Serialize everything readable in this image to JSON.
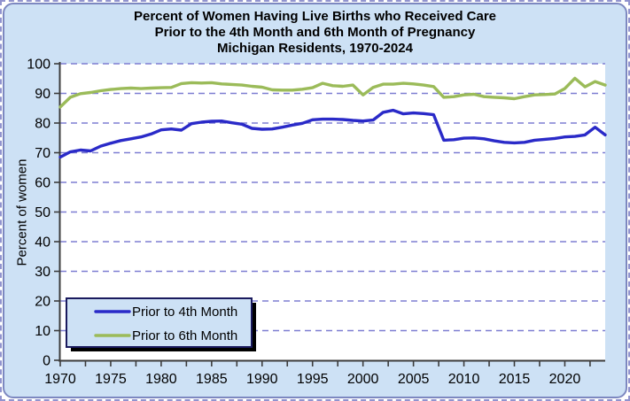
{
  "window": {
    "background_color": "#cde1f5",
    "outer_border_color": "#9193ce",
    "card_border_color": "#7d88c0"
  },
  "chart_data": {
    "type": "line",
    "title_lines": [
      "Percent of Women Having Live Births who Received Care",
      "Prior to the 4th Month and 6th Month of Pregnancy",
      "Michigan Residents, 1970-2024"
    ],
    "xlabel": "",
    "ylabel": "Percent of women",
    "xlim": [
      1970,
      2024
    ],
    "ylim": [
      0,
      100
    ],
    "y_ticks": [
      0,
      10,
      20,
      30,
      40,
      50,
      60,
      70,
      80,
      90,
      100
    ],
    "x_tick_labels": [
      1970,
      1975,
      1980,
      1985,
      1990,
      1995,
      2000,
      2005,
      2010,
      2015,
      2020
    ],
    "x_minor_tick_step": 2.5,
    "grid": "horizontal-dashed",
    "legend_position": "bottom-left-inside",
    "x": [
      1970,
      1971,
      1972,
      1973,
      1974,
      1975,
      1976,
      1977,
      1978,
      1979,
      1980,
      1981,
      1982,
      1983,
      1984,
      1985,
      1986,
      1987,
      1988,
      1989,
      1990,
      1991,
      1992,
      1993,
      1994,
      1995,
      1996,
      1997,
      1998,
      1999,
      2000,
      2001,
      2002,
      2003,
      2004,
      2005,
      2006,
      2007,
      2008,
      2009,
      2010,
      2011,
      2012,
      2013,
      2014,
      2015,
      2016,
      2017,
      2018,
      2019,
      2020,
      2021,
      2022,
      2023,
      2024
    ],
    "series": [
      {
        "name": "Prior to 4th Month",
        "color": "#2a2ac8",
        "values": [
          68.5,
          70.3,
          70.9,
          70.6,
          72.2,
          73.2,
          74.1,
          74.7,
          75.3,
          76.3,
          77.7,
          78.0,
          77.6,
          79.8,
          80.3,
          80.6,
          80.7,
          80.1,
          79.6,
          78.2,
          77.9,
          78.0,
          78.6,
          79.3,
          79.9,
          81.1,
          81.3,
          81.3,
          81.2,
          80.9,
          80.7,
          81.0,
          83.6,
          84.3,
          83.1,
          83.4,
          83.2,
          82.8,
          74.2,
          74.4,
          74.9,
          75.0,
          74.7,
          74.0,
          73.5,
          73.3,
          73.5,
          74.2,
          74.5,
          74.8,
          75.3,
          75.5,
          76.0,
          78.6,
          76.0
        ]
      },
      {
        "name": "Prior to 6th Month",
        "color": "#9bbb59",
        "values": [
          85.4,
          88.7,
          89.9,
          90.3,
          90.9,
          91.3,
          91.6,
          91.8,
          91.6,
          91.8,
          91.9,
          92.0,
          93.3,
          93.6,
          93.5,
          93.6,
          93.2,
          93.0,
          92.8,
          92.4,
          92.1,
          91.2,
          91.1,
          91.1,
          91.4,
          91.9,
          93.4,
          92.6,
          92.4,
          92.8,
          89.5,
          92.0,
          93.1,
          93.1,
          93.4,
          93.2,
          92.8,
          92.3,
          88.7,
          88.9,
          89.5,
          89.7,
          88.9,
          88.7,
          88.5,
          88.2,
          88.9,
          89.5,
          89.6,
          89.8,
          91.6,
          95.1,
          92.2,
          94.0,
          92.8
        ]
      }
    ],
    "colors": {
      "plot_background": "#ffffff",
      "gridline": "#7e7ed2",
      "axis": "#3c3c3c",
      "text": "#000000",
      "legend_fill": "#cde1f5",
      "legend_border": "#1a1a5e",
      "legend_shadow": "#000000"
    }
  }
}
